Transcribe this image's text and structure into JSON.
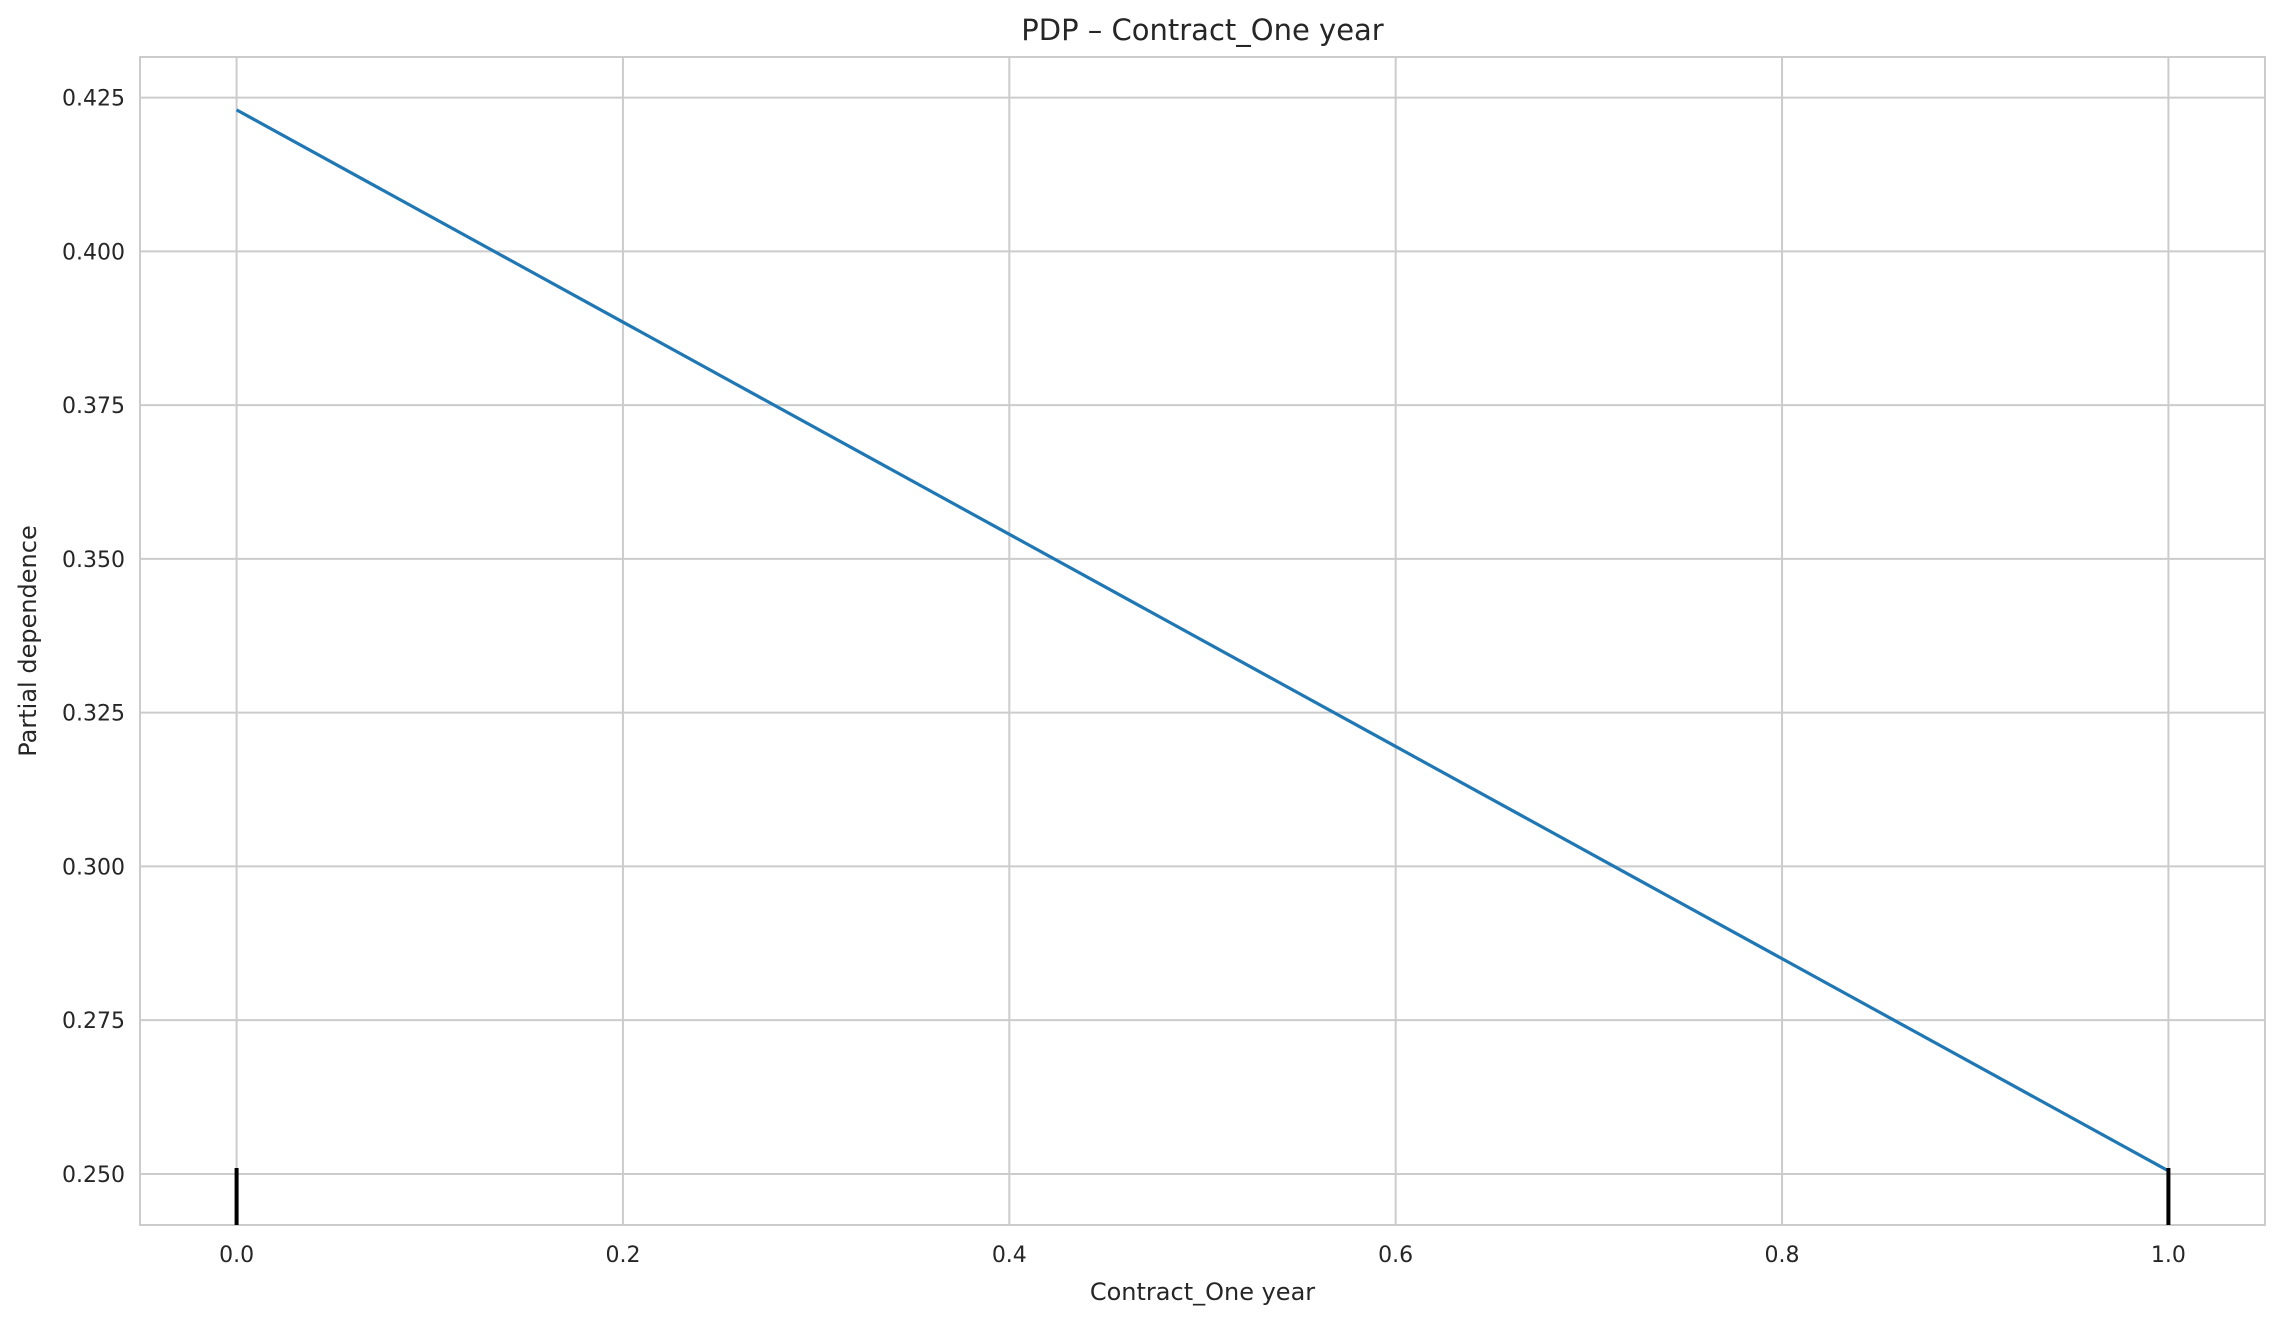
{
  "chart_data": {
    "type": "line",
    "title": "PDP – Contract_One year",
    "xlabel": "Contract_One year",
    "ylabel": "Partial dependence",
    "xlim": [
      -0.05,
      1.05
    ],
    "ylim": [
      0.2417,
      0.4316
    ],
    "xticks": [
      0.0,
      0.2,
      0.4,
      0.6,
      0.8,
      1.0
    ],
    "xtick_labels": [
      "0.0",
      "0.2",
      "0.4",
      "0.6",
      "0.8",
      "1.0"
    ],
    "yticks": [
      0.25,
      0.275,
      0.3,
      0.325,
      0.35,
      0.375,
      0.4,
      0.425
    ],
    "ytick_labels": [
      "0.250",
      "0.275",
      "0.300",
      "0.325",
      "0.350",
      "0.375",
      "0.400",
      "0.425"
    ],
    "grid": true,
    "series": [
      {
        "x": [
          0.0,
          1.0
        ],
        "y": [
          0.423,
          0.2505
        ],
        "color": "#1f77b4"
      }
    ],
    "rug": {
      "x": [
        0.0,
        1.0
      ],
      "color": "#000000"
    },
    "colors": {
      "grid": "#cccccc",
      "spine": "#cccccc",
      "text": "#262626"
    }
  }
}
